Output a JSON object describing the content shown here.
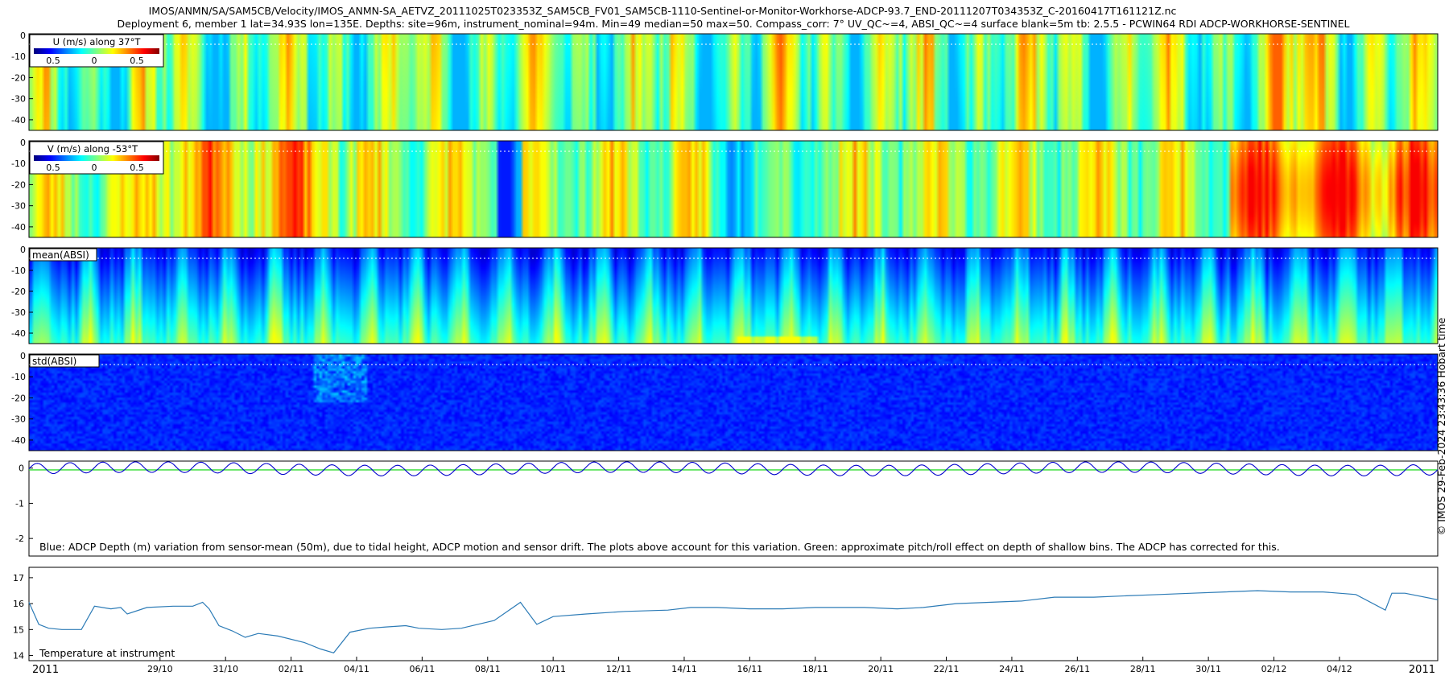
{
  "header": {
    "title_line1": "IMOS/ANMN/SA/SAM5CB/Velocity/IMOS_ANMN-SA_AETVZ_20111025T023353Z_SAM5CB_FV01_SAM5CB-1110-Sentinel-or-Monitor-Workhorse-ADCP-93.7_END-20111207T034353Z_C-20160417T161121Z.nc",
    "title_line2": "Deployment 6, member 1 lat=34.93S lon=135E. Depths: site=96m, instrument_nominal=94m. Min=49 median=50 max=50. Compass_corr: 7° UV_QC~=4, ABSI_QC~=4 surface blank=5m tb: 2.5.5 - PCWIN64 RDI ADCP-WORKHORSE-SENTINEL"
  },
  "side_label": "© IMOS 29-Feb-2024 23:43:36 Hobart time",
  "chart_data": [
    {
      "type": "heatmap",
      "title": "U (m/s) along 37°T",
      "yticks": [
        "0",
        "-10",
        "-20",
        "-30",
        "-40"
      ],
      "ylim": [
        -45,
        0
      ],
      "colorbar_ticks": [
        "0.5",
        "0",
        "0.5"
      ],
      "colorbar_range": [
        -0.7,
        0.7
      ],
      "colormap": "jet",
      "surface_blank_line": -5
    },
    {
      "type": "heatmap",
      "title": "V (m/s) along -53°T",
      "yticks": [
        "0",
        "-10",
        "-20",
        "-30",
        "-40"
      ],
      "ylim": [
        -45,
        0
      ],
      "colorbar_ticks": [
        "0.5",
        "0",
        "0.5"
      ],
      "colorbar_range": [
        -0.7,
        0.7
      ],
      "colormap": "jet",
      "surface_blank_line": -5
    },
    {
      "type": "heatmap",
      "title": "mean(ABSI)",
      "yticks": [
        "0",
        "-10",
        "-20",
        "-30",
        "-40"
      ],
      "ylim": [
        -45,
        0
      ],
      "colormap": "jet",
      "surface_blank_line": -5
    },
    {
      "type": "heatmap",
      "title": "std(ABSI)",
      "yticks": [
        "0",
        "-10",
        "-20",
        "-30",
        "-40"
      ],
      "ylim": [
        -45,
        0
      ],
      "colormap": "jet",
      "surface_blank_line": -5
    },
    {
      "type": "line",
      "annotation": "Blue: ADCP Depth (m) variation from sensor-mean (50m), due to tidal height, ADCP motion and sensor drift. The plots above account for this variation. Green: approximate pitch/roll effect on depth of shallow bins. The ADCP has corrected for this.",
      "yticks": [
        "0",
        "-1",
        "-2"
      ],
      "ylim": [
        -2.5,
        0.2
      ],
      "series": [
        {
          "color": "#0000cc",
          "tidal_amplitude": 0.15,
          "tidal_period_days": 1.0,
          "days": [
            0,
            43
          ]
        },
        {
          "color": "#33dd33",
          "values": [
            -0.05,
            -0.05
          ]
        }
      ]
    },
    {
      "type": "line",
      "annotation": "Temperature at instrument",
      "yticks": [
        "17",
        "16",
        "15",
        "14"
      ],
      "ylim": [
        13.8,
        17.4
      ],
      "line_color": "#2c7bb6",
      "x_days": [
        0,
        0.3,
        0.6,
        1,
        1.6,
        2,
        2.5,
        2.8,
        3,
        3.6,
        4.4,
        5,
        5.3,
        5.5,
        5.8,
        6.2,
        6.6,
        7,
        7.6,
        8.4,
        8.9,
        9.3,
        9.8,
        10.4,
        10.9,
        11.5,
        11.9,
        12.6,
        13.2,
        14.2,
        15,
        15.5,
        16,
        17,
        18.2,
        19.5,
        20.2,
        21,
        22,
        23,
        24,
        25.5,
        26.5,
        27.3,
        28.3,
        29.3,
        30.3,
        31.3,
        32.5,
        33.5,
        34.5,
        35.5,
        36.5,
        37.5,
        38.5,
        39.5,
        40.5,
        41.4,
        41.6,
        42,
        43
      ],
      "y_values": [
        16.05,
        15.2,
        15.05,
        15.0,
        15.0,
        15.9,
        15.8,
        15.85,
        15.6,
        15.85,
        15.9,
        15.9,
        16.05,
        15.8,
        15.15,
        14.95,
        14.7,
        14.85,
        14.75,
        14.5,
        14.25,
        14.1,
        14.9,
        15.05,
        15.1,
        15.15,
        15.05,
        15.0,
        15.05,
        15.35,
        16.05,
        15.2,
        15.5,
        15.6,
        15.7,
        15.75,
        15.85,
        15.85,
        15.8,
        15.8,
        15.85,
        15.85,
        15.8,
        15.85,
        16.0,
        16.05,
        16.1,
        16.25,
        16.25,
        16.3,
        16.35,
        16.4,
        16.45,
        16.5,
        16.45,
        16.45,
        16.35,
        15.75,
        16.4,
        16.4,
        16.15
      ]
    }
  ],
  "x_axis": {
    "year_label_left": "2011",
    "year_label_right": "2011",
    "tick_labels": [
      "29/10",
      "31/10",
      "02/11",
      "04/11",
      "06/11",
      "08/11",
      "10/11",
      "12/11",
      "14/11",
      "16/11",
      "18/11",
      "20/11",
      "22/11",
      "24/11",
      "26/11",
      "28/11",
      "30/11",
      "02/12",
      "04/12"
    ],
    "start_date": "25/10/2011",
    "end_date": "07/12/2011"
  }
}
